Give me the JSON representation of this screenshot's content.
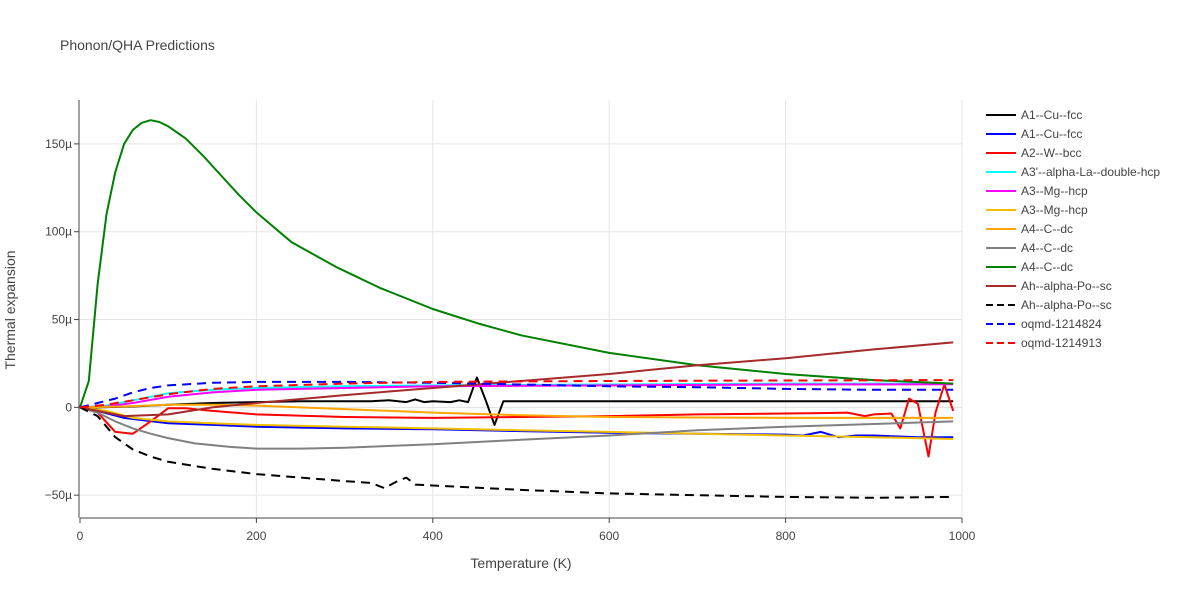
{
  "chart_data": {
    "type": "line",
    "title": "Phonon/QHA Predictions",
    "xlabel": "Temperature (K)",
    "ylabel": "Thermal expansion",
    "xlim": [
      0,
      1000
    ],
    "ylim": [
      -63,
      175
    ],
    "x_ticks": [
      0,
      200,
      400,
      600,
      800,
      1000
    ],
    "x_tick_labels": [
      "0",
      "200",
      "400",
      "600",
      "800",
      "1000"
    ],
    "y_ticks": [
      -50,
      0,
      50,
      100,
      150
    ],
    "y_tick_labels": [
      "−50µ",
      "0",
      "50µ",
      "100µ",
      "150µ"
    ],
    "y_unit_note": "values in units of 1e-6 (µ)",
    "grid": true,
    "legend_position": "right",
    "series": [
      {
        "name": "A1--Cu--fcc",
        "color": "#000000",
        "dash": "solid",
        "points": [
          [
            0,
            0
          ],
          [
            20,
            0
          ],
          [
            60,
            0.5
          ],
          [
            100,
            1.5
          ],
          [
            150,
            2.5
          ],
          [
            200,
            3
          ],
          [
            250,
            3.5
          ],
          [
            300,
            3.5
          ],
          [
            330,
            3.5
          ],
          [
            350,
            4
          ],
          [
            370,
            3
          ],
          [
            380,
            4.5
          ],
          [
            390,
            3
          ],
          [
            400,
            3.5
          ],
          [
            420,
            3
          ],
          [
            430,
            4
          ],
          [
            440,
            3
          ],
          [
            450,
            17
          ],
          [
            460,
            4
          ],
          [
            470,
            -10
          ],
          [
            480,
            3.5
          ],
          [
            500,
            3.5
          ],
          [
            600,
            3.5
          ],
          [
            700,
            3.5
          ],
          [
            800,
            3.5
          ],
          [
            900,
            3.5
          ],
          [
            990,
            3.5
          ]
        ]
      },
      {
        "name": "A1--Cu--fcc",
        "color": "#0000ff",
        "dash": "solid",
        "points": [
          [
            0,
            0
          ],
          [
            20,
            -2
          ],
          [
            50,
            -6
          ],
          [
            100,
            -9
          ],
          [
            150,
            -10
          ],
          [
            200,
            -11
          ],
          [
            300,
            -12
          ],
          [
            400,
            -12.5
          ],
          [
            500,
            -13.5
          ],
          [
            600,
            -14.5
          ],
          [
            700,
            -15
          ],
          [
            800,
            -15.5
          ],
          [
            820,
            -16
          ],
          [
            840,
            -14
          ],
          [
            860,
            -17
          ],
          [
            880,
            -16
          ],
          [
            900,
            -16
          ],
          [
            950,
            -17
          ],
          [
            990,
            -17
          ]
        ]
      },
      {
        "name": "A2--W--bcc",
        "color": "#ff0000",
        "dash": "solid",
        "points": [
          [
            0,
            0
          ],
          [
            20,
            -3
          ],
          [
            40,
            -14
          ],
          [
            60,
            -15
          ],
          [
            80,
            -8
          ],
          [
            100,
            -0.5
          ],
          [
            120,
            -0.5
          ],
          [
            150,
            -2
          ],
          [
            200,
            -4
          ],
          [
            300,
            -5.5
          ],
          [
            400,
            -6
          ],
          [
            500,
            -5.5
          ],
          [
            600,
            -5
          ],
          [
            700,
            -4
          ],
          [
            800,
            -3.5
          ],
          [
            850,
            -3.2
          ],
          [
            870,
            -3
          ],
          [
            880,
            -4
          ],
          [
            890,
            -5
          ],
          [
            900,
            -4
          ],
          [
            920,
            -3.5
          ],
          [
            930,
            -12
          ],
          [
            940,
            5
          ],
          [
            950,
            2
          ],
          [
            962,
            -28
          ],
          [
            970,
            -3
          ],
          [
            980,
            13
          ],
          [
            990,
            -2
          ]
        ]
      },
      {
        "name": "A3'--alpha-La--double-hcp",
        "color": "#00ffff",
        "dash": "solid",
        "points": [
          [
            0,
            0
          ],
          [
            30,
            1
          ],
          [
            60,
            4
          ],
          [
            100,
            8
          ],
          [
            150,
            10
          ],
          [
            200,
            11
          ],
          [
            300,
            12
          ],
          [
            400,
            12.5
          ],
          [
            600,
            13
          ],
          [
            800,
            13.5
          ],
          [
            990,
            13.5
          ]
        ]
      },
      {
        "name": "A3--Mg--hcp",
        "color": "#ff00ff",
        "dash": "solid",
        "points": [
          [
            0,
            0
          ],
          [
            30,
            0.5
          ],
          [
            60,
            2.5
          ],
          [
            100,
            6
          ],
          [
            150,
            8.5
          ],
          [
            200,
            10
          ],
          [
            300,
            11
          ],
          [
            400,
            12
          ],
          [
            600,
            12.5
          ],
          [
            800,
            13
          ],
          [
            990,
            13.2
          ]
        ]
      },
      {
        "name": "A3--Mg--hcp",
        "color": "#f0c000",
        "dash": "solid",
        "points": [
          [
            0,
            0
          ],
          [
            30,
            -2
          ],
          [
            60,
            -6
          ],
          [
            100,
            -8
          ],
          [
            150,
            -9
          ],
          [
            200,
            -10
          ],
          [
            300,
            -11
          ],
          [
            400,
            -12
          ],
          [
            500,
            -13
          ],
          [
            600,
            -14
          ],
          [
            700,
            -15
          ],
          [
            800,
            -16
          ],
          [
            900,
            -17
          ],
          [
            990,
            -18
          ]
        ]
      },
      {
        "name": "A4--C--dc",
        "color": "#ffa500",
        "dash": "solid",
        "points": [
          [
            0,
            0
          ],
          [
            50,
            0.5
          ],
          [
            100,
            1.5
          ],
          [
            150,
            1.5
          ],
          [
            200,
            1
          ],
          [
            300,
            -1
          ],
          [
            400,
            -3
          ],
          [
            500,
            -4.5
          ],
          [
            600,
            -5.5
          ],
          [
            700,
            -5.8
          ],
          [
            800,
            -6
          ],
          [
            900,
            -6
          ],
          [
            990,
            -6
          ]
        ]
      },
      {
        "name": "A4--C--dc",
        "color": "#808080",
        "dash": "solid",
        "points": [
          [
            0,
            0
          ],
          [
            20,
            -3
          ],
          [
            40,
            -8
          ],
          [
            60,
            -12
          ],
          [
            80,
            -15
          ],
          [
            100,
            -17.5
          ],
          [
            130,
            -20.5
          ],
          [
            170,
            -22.5
          ],
          [
            200,
            -23.5
          ],
          [
            250,
            -23.5
          ],
          [
            300,
            -23
          ],
          [
            400,
            -21
          ],
          [
            500,
            -18.5
          ],
          [
            600,
            -16
          ],
          [
            700,
            -13
          ],
          [
            800,
            -11
          ],
          [
            900,
            -9.5
          ],
          [
            990,
            -8
          ]
        ]
      },
      {
        "name": "A4--C--dc",
        "color": "#008000",
        "dash": "solid",
        "points": [
          [
            0,
            0
          ],
          [
            10,
            15
          ],
          [
            20,
            70
          ],
          [
            30,
            110
          ],
          [
            40,
            134
          ],
          [
            50,
            150
          ],
          [
            60,
            158
          ],
          [
            70,
            162
          ],
          [
            80,
            163.5
          ],
          [
            90,
            162.5
          ],
          [
            100,
            160
          ],
          [
            120,
            153
          ],
          [
            140,
            143
          ],
          [
            160,
            132
          ],
          [
            180,
            121
          ],
          [
            200,
            111
          ],
          [
            240,
            94
          ],
          [
            290,
            80
          ],
          [
            340,
            68
          ],
          [
            400,
            56
          ],
          [
            450,
            48
          ],
          [
            500,
            41
          ],
          [
            600,
            31
          ],
          [
            700,
            24
          ],
          [
            800,
            19
          ],
          [
            900,
            15.5
          ],
          [
            990,
            13.5
          ]
        ]
      },
      {
        "name": "Ah--alpha-Po--sc",
        "color": "#a52a2a",
        "dash": "solid",
        "points": [
          [
            0,
            0
          ],
          [
            50,
            -5
          ],
          [
            100,
            -4
          ],
          [
            150,
            0
          ],
          [
            200,
            2.5
          ],
          [
            300,
            7
          ],
          [
            400,
            11
          ],
          [
            500,
            15
          ],
          [
            600,
            19
          ],
          [
            700,
            24
          ],
          [
            800,
            28
          ],
          [
            900,
            33
          ],
          [
            990,
            37
          ]
        ]
      },
      {
        "name": "Ah--alpha-Po--sc",
        "color": "#000000",
        "dash": "dash",
        "points": [
          [
            0,
            0
          ],
          [
            20,
            -5
          ],
          [
            40,
            -17
          ],
          [
            60,
            -24
          ],
          [
            80,
            -28
          ],
          [
            100,
            -31
          ],
          [
            150,
            -35
          ],
          [
            200,
            -38
          ],
          [
            250,
            -40
          ],
          [
            300,
            -42
          ],
          [
            330,
            -43
          ],
          [
            345,
            -46
          ],
          [
            360,
            -42
          ],
          [
            370,
            -40
          ],
          [
            380,
            -44
          ],
          [
            400,
            -44.5
          ],
          [
            500,
            -47
          ],
          [
            600,
            -49
          ],
          [
            700,
            -50
          ],
          [
            800,
            -51
          ],
          [
            900,
            -51.5
          ],
          [
            990,
            -51
          ]
        ]
      },
      {
        "name": "oqmd-1214824",
        "color": "#0000ff",
        "dash": "dash",
        "points": [
          [
            0,
            0
          ],
          [
            20,
            2.5
          ],
          [
            40,
            5
          ],
          [
            60,
            8.5
          ],
          [
            80,
            11
          ],
          [
            100,
            12.5
          ],
          [
            150,
            14
          ],
          [
            200,
            14.5
          ],
          [
            300,
            14.5
          ],
          [
            400,
            14
          ],
          [
            500,
            13
          ],
          [
            600,
            12
          ],
          [
            700,
            11.5
          ],
          [
            800,
            10.5
          ],
          [
            900,
            10
          ],
          [
            990,
            10
          ]
        ]
      },
      {
        "name": "oqmd-1214913",
        "color": "#ff0000",
        "dash": "dash",
        "points": [
          [
            0,
            0
          ],
          [
            30,
            1.5
          ],
          [
            60,
            4
          ],
          [
            100,
            7.5
          ],
          [
            150,
            10.5
          ],
          [
            200,
            12
          ],
          [
            300,
            13.5
          ],
          [
            400,
            14.5
          ],
          [
            500,
            14.8
          ],
          [
            600,
            15
          ],
          [
            700,
            15.2
          ],
          [
            800,
            15.3
          ],
          [
            900,
            15.4
          ],
          [
            990,
            15.5
          ]
        ]
      }
    ]
  }
}
